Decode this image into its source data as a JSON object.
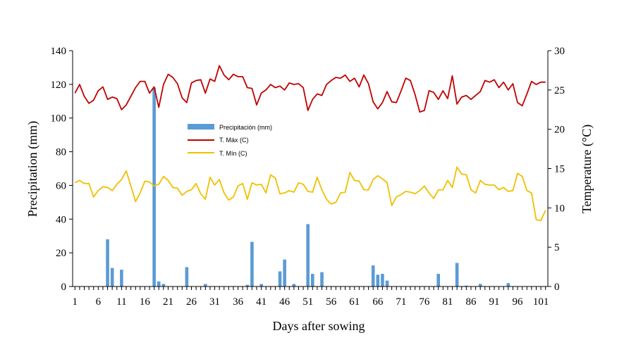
{
  "chart_data": {
    "type": "bar+line",
    "title": "",
    "xlabel": "Days after sowing",
    "ylabel_left": "Precipitation (mm)",
    "ylabel_right": "Temperature (°C)",
    "ylim_left": [
      0,
      140
    ],
    "ylim_right": [
      0,
      30
    ],
    "yticks_left": [
      "0",
      "20",
      "40",
      "60",
      "80",
      "100",
      "120",
      "140"
    ],
    "yticks_right": [
      "0",
      "5",
      "10",
      "15",
      "20",
      "25",
      "30"
    ],
    "x_range": [
      1,
      102
    ],
    "xtick_labels": [
      "1",
      "6",
      "11",
      "16",
      "21",
      "26",
      "31",
      "36",
      "41",
      "46",
      "51",
      "56",
      "61",
      "66",
      "71",
      "76",
      "81",
      "86",
      "91",
      "96",
      "101"
    ],
    "legend": [
      "Precipitación (mm)",
      "T. Máx (C)",
      "T. Mín (C)"
    ],
    "colors": {
      "precip": "#5b9bd5",
      "tmax": "#c00000",
      "tmin": "#f0c000"
    },
    "series": [
      {
        "name": "Precipitación (mm)",
        "axis": "left",
        "type": "bar",
        "values": [
          0,
          0,
          0,
          0,
          0,
          0,
          0,
          28,
          11,
          0,
          10,
          0,
          0,
          0,
          0,
          0,
          0,
          118,
          3,
          1.5,
          0,
          0,
          0,
          0,
          11.5,
          0,
          0,
          0,
          1.5,
          0,
          0,
          0,
          0,
          0,
          0,
          0,
          0,
          1,
          26.5,
          0,
          1.5,
          0,
          0,
          0,
          9,
          16,
          0,
          1.5,
          0,
          0,
          37,
          7.5,
          0,
          8.5,
          0,
          0,
          0,
          0,
          0,
          0,
          0,
          0,
          0,
          0,
          12.5,
          7,
          7.5,
          3.5,
          0,
          0,
          0,
          0,
          0,
          0,
          0,
          0,
          0,
          0,
          7.5,
          0,
          0,
          0,
          14,
          0,
          0.5,
          0,
          0,
          1.5,
          0,
          0,
          0,
          0,
          0,
          2,
          0,
          0,
          0,
          0,
          0,
          0,
          0,
          0
        ]
      },
      {
        "name": "T. Máx (C)",
        "axis": "right",
        "type": "line",
        "values": [
          24.6,
          25.7,
          24.2,
          23.3,
          23.7,
          24.9,
          25.4,
          23.8,
          24.1,
          23.9,
          22.5,
          23.1,
          24.2,
          25.3,
          26.1,
          26.1,
          24.6,
          25.4,
          22.8,
          25.7,
          27.0,
          26.6,
          25.8,
          24.0,
          23.4,
          25.9,
          26.2,
          26.3,
          24.6,
          26.4,
          26.1,
          28.1,
          26.9,
          26.3,
          27.0,
          26.7,
          26.7,
          25.3,
          25.2,
          23.1,
          24.6,
          25.0,
          25.7,
          25.3,
          25.5,
          25.0,
          25.9,
          25.7,
          25.8,
          25.3,
          22.4,
          23.8,
          24.5,
          24.3,
          25.7,
          26.2,
          26.6,
          26.5,
          26.9,
          26.1,
          26.5,
          25.4,
          26.9,
          25.8,
          23.5,
          22.6,
          23.4,
          24.8,
          23.5,
          23.4,
          24.9,
          26.5,
          26.2,
          24.4,
          22.2,
          22.4,
          24.9,
          24.7,
          23.8,
          24.9,
          23.9,
          26.8,
          23.2,
          24.1,
          24.3,
          23.8,
          24.3,
          24.8,
          26.2,
          26.0,
          26.3,
          25.3,
          26.0,
          25.0,
          25.8,
          23.4,
          23.0,
          24.5,
          26.1,
          25.7,
          26.0,
          26.0
        ]
      },
      {
        "name": "T. Mín (C)",
        "axis": "right",
        "type": "line",
        "values": [
          13.2,
          13.5,
          13.1,
          13.1,
          11.4,
          12.2,
          12.7,
          12.6,
          12.2,
          13.0,
          13.6,
          14.7,
          12.8,
          10.8,
          11.9,
          13.4,
          13.3,
          12.8,
          13.0,
          14.0,
          13.5,
          12.6,
          12.5,
          11.6,
          12.1,
          12.3,
          13.1,
          11.8,
          11.1,
          13.9,
          12.9,
          13.6,
          11.9,
          11.0,
          11.4,
          12.8,
          13.1,
          11.1,
          13.2,
          12.9,
          13.0,
          11.9,
          14.2,
          13.8,
          11.8,
          11.9,
          12.2,
          12.0,
          13.2,
          13.0,
          12.1,
          12.0,
          13.9,
          12.3,
          11.1,
          10.5,
          10.7,
          11.9,
          12.0,
          14.5,
          13.5,
          13.4,
          12.3,
          12.3,
          13.6,
          14.1,
          13.7,
          13.2,
          10.3,
          11.4,
          11.7,
          12.1,
          12.0,
          11.8,
          12.2,
          12.8,
          11.9,
          11.2,
          12.3,
          12.3,
          13.5,
          12.6,
          15.2,
          14.3,
          14.2,
          12.3,
          11.9,
          13.5,
          13.0,
          12.9,
          12.9,
          12.3,
          12.6,
          12.1,
          12.2,
          14.4,
          14.0,
          12.2,
          11.9,
          8.5,
          8.4,
          9.7
        ]
      }
    ]
  }
}
